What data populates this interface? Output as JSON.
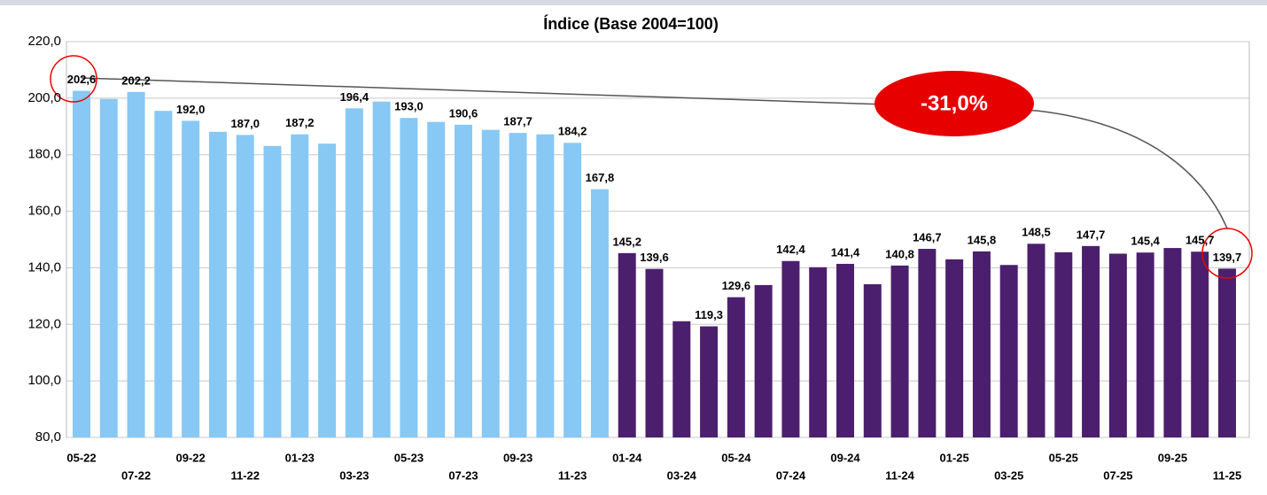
{
  "chart_data": {
    "type": "bar",
    "title": "Índice (Base 2004=100)",
    "categories": [
      "05-22",
      null,
      "07-22",
      null,
      "09-22",
      null,
      "11-22",
      null,
      "01-23",
      null,
      "03-23",
      null,
      "05-23",
      null,
      "07-23",
      null,
      "09-23",
      null,
      "11-23",
      null,
      "01-24",
      null,
      "03-24",
      null,
      "05-24",
      null,
      "07-24",
      null,
      "09-24",
      null,
      "11-24",
      null,
      "01-25",
      null,
      "03-25",
      null,
      "05-25",
      null,
      "07-25",
      null,
      "09-25",
      null,
      "11-25"
    ],
    "values": [
      202.6,
      199.7,
      202.2,
      195.5,
      192.0,
      188.1,
      187.0,
      183.1,
      187.2,
      183.9,
      196.4,
      198.8,
      193.0,
      191.6,
      190.6,
      188.8,
      187.7,
      187.2,
      184.2,
      167.8,
      145.2,
      139.6,
      121.1,
      119.3,
      129.6,
      133.9,
      142.4,
      140.2,
      141.4,
      134.2,
      140.8,
      146.7,
      143.0,
      145.8,
      141.0,
      148.5,
      145.5,
      147.7,
      145.0,
      145.4,
      147.0,
      145.7,
      139.7
    ],
    "value_labels": [
      "202,6",
      null,
      "202,2",
      null,
      "192,0",
      null,
      "187,0",
      null,
      "187,2",
      null,
      "196,4",
      null,
      "193,0",
      null,
      "190,6",
      null,
      "187,7",
      null,
      "184,2",
      "167,8",
      "145,2",
      "139,6",
      null,
      "119,3",
      "129,6",
      null,
      "142,4",
      null,
      "141,4",
      null,
      "140,8",
      "146,7",
      null,
      "145,8",
      null,
      "148,5",
      null,
      "147,7",
      null,
      "145,4",
      null,
      "145,7",
      "139,7"
    ],
    "colors": [
      "#87c8f5",
      "#87c8f5",
      "#87c8f5",
      "#87c8f5",
      "#87c8f5",
      "#87c8f5",
      "#87c8f5",
      "#87c8f5",
      "#87c8f5",
      "#87c8f5",
      "#87c8f5",
      "#87c8f5",
      "#87c8f5",
      "#87c8f5",
      "#87c8f5",
      "#87c8f5",
      "#87c8f5",
      "#87c8f5",
      "#87c8f5",
      "#87c8f5",
      "#4b1f6e",
      "#4b1f6e",
      "#4b1f6e",
      "#4b1f6e",
      "#4b1f6e",
      "#4b1f6e",
      "#4b1f6e",
      "#4b1f6e",
      "#4b1f6e",
      "#4b1f6e",
      "#4b1f6e",
      "#4b1f6e",
      "#4b1f6e",
      "#4b1f6e",
      "#4b1f6e",
      "#4b1f6e",
      "#4b1f6e",
      "#4b1f6e",
      "#4b1f6e",
      "#4b1f6e",
      "#4b1f6e",
      "#4b1f6e",
      "#4b1f6e"
    ],
    "ylim": [
      80,
      220
    ],
    "yticks": [
      {
        "value": 80,
        "label": "80,0"
      },
      {
        "value": 100,
        "label": "100,0"
      },
      {
        "value": 120,
        "label": "120,0"
      },
      {
        "value": 140,
        "label": "140,0"
      },
      {
        "value": 160,
        "label": "160,0"
      },
      {
        "value": 180,
        "label": "180,0"
      },
      {
        "value": 200,
        "label": "200,0"
      },
      {
        "value": 220,
        "label": "220,0"
      }
    ],
    "grid": true,
    "annotation": "-31,0%"
  }
}
